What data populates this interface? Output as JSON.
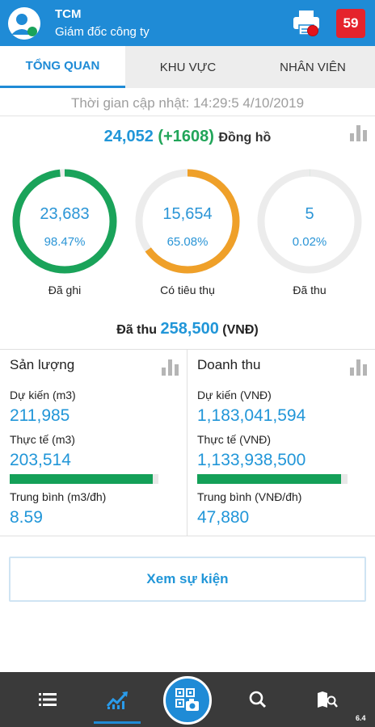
{
  "header": {
    "title": "TCM",
    "subtitle": "Giám đốc công ty",
    "notification_count": "59"
  },
  "tabs": [
    {
      "label": "TỔNG QUAN",
      "active": true
    },
    {
      "label": "KHU VỰC",
      "active": false
    },
    {
      "label": "NHÂN VIÊN",
      "active": false
    }
  ],
  "update": {
    "text": "Thời gian cập nhật: 14:29:5  4/10/2019"
  },
  "summary": {
    "total": "24,052",
    "delta": "(+1608)",
    "unit": "Đồng hồ"
  },
  "gauges": [
    {
      "number": "23,683",
      "percent": "98.47%",
      "label": "Đã ghi",
      "fraction": 0.9847,
      "color": "#1aa35a"
    },
    {
      "number": "15,654",
      "percent": "65.08%",
      "label": "Có tiêu thụ",
      "fraction": 0.6508,
      "color": "#efa029"
    },
    {
      "number": "5",
      "percent": "0.02%",
      "label": "Đã thu",
      "fraction": 0.0002,
      "color": "#1aa35a"
    }
  ],
  "collected": {
    "prefix": "Đã thu",
    "amount": "258,500",
    "unit": "(VNĐ)"
  },
  "output_panel": {
    "title": "Sản lượng",
    "expected_label": "Dự kiến (m3)",
    "expected_value": "211,985",
    "actual_label": "Thực tế (m3)",
    "actual_value": "203,514",
    "progress": 0.96,
    "average_label": "Trung bình (m3/đh)",
    "average_value": "8.59"
  },
  "revenue_panel": {
    "title": "Doanh thu",
    "expected_label": "Dự kiến (VNĐ)",
    "expected_value": "1,183,041,594",
    "actual_label": "Thực tế (VNĐ)",
    "actual_value": "1,133,938,500",
    "progress": 0.958,
    "average_label": "Trung bình (VNĐ/đh)",
    "average_value": "47,880"
  },
  "events_button": {
    "label": "Xem sự kiện"
  },
  "bottom_nav": {
    "items": [
      "menu-icon",
      "chart-line-icon",
      "qr-camera-icon",
      "search-icon",
      "map-search-icon"
    ],
    "active": "chart-line-icon",
    "version": "6.4"
  },
  "colors": {
    "primary": "#1f8bd6",
    "green": "#1aa35a",
    "orange": "#efa029",
    "red": "#e5232c"
  }
}
